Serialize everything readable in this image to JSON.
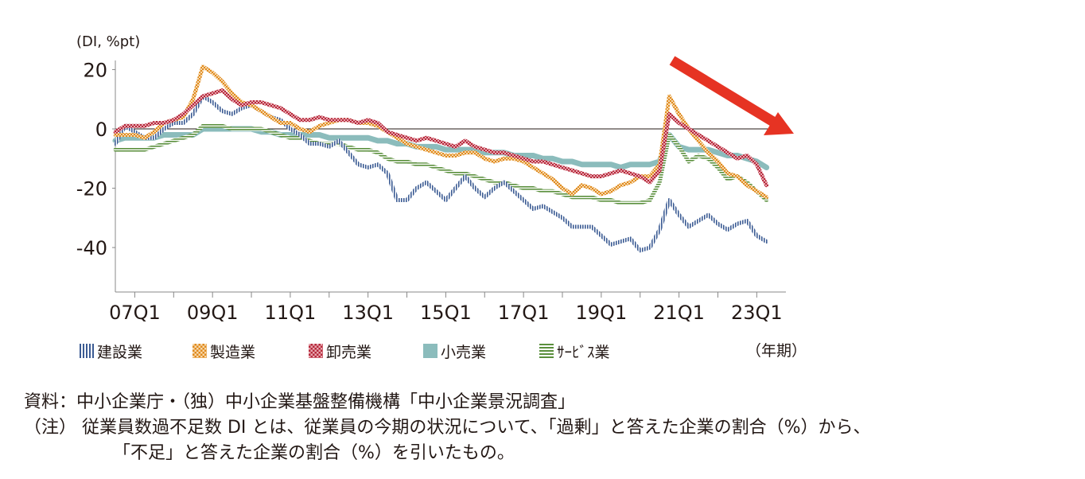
{
  "chart_data": {
    "type": "line",
    "unit_label": "(DI, %pt)",
    "x_axis_title": "（年期）",
    "x_tick_labels": [
      "07Q1",
      "09Q1",
      "11Q1",
      "13Q1",
      "15Q1",
      "17Q1",
      "19Q1",
      "21Q1",
      "23Q1"
    ],
    "y_tick_labels": [
      "20",
      "0",
      "-20",
      "-40"
    ],
    "y_ticks": [
      20,
      0,
      -20,
      -40
    ],
    "ylim": [
      -55,
      22
    ],
    "x": [
      "06Q3",
      "06Q4",
      "07Q1",
      "07Q2",
      "07Q3",
      "07Q4",
      "08Q1",
      "08Q2",
      "08Q3",
      "08Q4",
      "09Q1",
      "09Q2",
      "09Q3",
      "09Q4",
      "10Q1",
      "10Q2",
      "10Q3",
      "10Q4",
      "11Q1",
      "11Q2",
      "11Q3",
      "11Q4",
      "12Q1",
      "12Q2",
      "12Q3",
      "12Q4",
      "13Q1",
      "13Q2",
      "13Q3",
      "13Q4",
      "14Q1",
      "14Q2",
      "14Q3",
      "14Q4",
      "15Q1",
      "15Q2",
      "15Q3",
      "15Q4",
      "16Q1",
      "16Q2",
      "16Q3",
      "16Q4",
      "17Q1",
      "17Q2",
      "17Q3",
      "17Q4",
      "18Q1",
      "18Q2",
      "18Q3",
      "18Q4",
      "19Q1",
      "19Q2",
      "19Q3",
      "19Q4",
      "20Q1",
      "20Q2",
      "20Q3",
      "20Q4",
      "21Q1",
      "21Q2",
      "21Q3",
      "21Q4",
      "22Q1",
      "22Q2",
      "22Q3",
      "22Q4",
      "23Q1",
      "23Q2"
    ],
    "series": [
      {
        "name": "建設業",
        "color": "#3b5b93",
        "values": [
          -5,
          1,
          -1,
          -3,
          -3,
          0,
          2,
          2,
          5,
          11,
          9,
          6,
          5,
          7,
          8,
          6,
          4,
          3,
          0,
          -2,
          -5,
          -5,
          -6,
          -4,
          -8,
          -12,
          -13,
          -12,
          -15,
          -24,
          -24,
          -20,
          -18,
          -21,
          -24,
          -20,
          -16,
          -20,
          -23,
          -20,
          -18,
          -21,
          -24,
          -27,
          -26,
          -28,
          -30,
          -33,
          -33,
          -33,
          -36,
          -39,
          -38,
          -37,
          -41,
          -40,
          -34,
          -24,
          -29,
          -33,
          -31,
          -29,
          -32,
          -34,
          -32,
          -31,
          -36,
          -38
        ]
      },
      {
        "name": "製造業",
        "color": "#e08a1e",
        "values": [
          -2,
          -2,
          -2,
          -3,
          -1,
          2,
          3,
          4,
          10,
          21,
          19,
          16,
          12,
          9,
          8,
          6,
          4,
          2,
          2,
          0,
          -1,
          1,
          2,
          3,
          3,
          2,
          2,
          1,
          -1,
          -3,
          -5,
          -6,
          -7,
          -8,
          -9,
          -9,
          -8,
          -8,
          -10,
          -11,
          -10,
          -10,
          -11,
          -13,
          -15,
          -17,
          -20,
          -22,
          -19,
          -20,
          -22,
          -21,
          -19,
          -18,
          -16,
          -16,
          -12,
          11,
          5,
          0,
          -4,
          -8,
          -11,
          -15,
          -16,
          -19,
          -21,
          -23
        ]
      },
      {
        "name": "卸売業",
        "color": "#b5283a",
        "values": [
          -1,
          1,
          1,
          1,
          2,
          2,
          3,
          5,
          8,
          11,
          12,
          13,
          10,
          8,
          9,
          9,
          8,
          7,
          5,
          3,
          3,
          4,
          3,
          3,
          3,
          2,
          3,
          2,
          -1,
          -2,
          -3,
          -4,
          -3,
          -4,
          -5,
          -6,
          -4,
          -6,
          -7,
          -8,
          -8,
          -9,
          -10,
          -11,
          -11,
          -12,
          -13,
          -14,
          -15,
          -16,
          -16,
          -15,
          -14,
          -15,
          -16,
          -18,
          -14,
          5,
          2,
          0,
          -2,
          -4,
          -6,
          -8,
          -10,
          -9,
          -12,
          -19
        ]
      },
      {
        "name": "小売業",
        "color": "#8bbcbc",
        "values": [
          -4,
          -3,
          -3,
          -3,
          -3,
          -2,
          -2,
          -2,
          -2,
          0,
          0,
          0,
          0,
          0,
          0,
          -1,
          -1,
          -2,
          -2,
          -2,
          -2,
          -2,
          -3,
          -3,
          -3,
          -3,
          -3,
          -4,
          -4,
          -5,
          -5,
          -6,
          -6,
          -6,
          -7,
          -7,
          -7,
          -7,
          -8,
          -8,
          -8,
          -9,
          -9,
          -9,
          -10,
          -10,
          -11,
          -11,
          -12,
          -12,
          -12,
          -12,
          -13,
          -12,
          -12,
          -12,
          -11,
          -2,
          -6,
          -7,
          -7,
          -7,
          -8,
          -9,
          -9,
          -10,
          -11,
          -13
        ]
      },
      {
        "name": "ｻｰﾋﾞｽ業",
        "color": "#5a8f3c",
        "values": [
          -7,
          -7,
          -7,
          -7,
          -6,
          -5,
          -4,
          -3,
          -2,
          1,
          1,
          1,
          0,
          0,
          0,
          0,
          -1,
          -2,
          -3,
          -3,
          -4,
          -5,
          -5,
          -5,
          -6,
          -7,
          -7,
          -8,
          -10,
          -11,
          -11,
          -12,
          -12,
          -13,
          -14,
          -15,
          -15,
          -16,
          -17,
          -18,
          -18,
          -19,
          -20,
          -20,
          -21,
          -21,
          -22,
          -23,
          -23,
          -23,
          -24,
          -24,
          -25,
          -25,
          -25,
          -24,
          -18,
          -2,
          -6,
          -11,
          -9,
          -10,
          -13,
          -17,
          -16,
          -18,
          -21,
          -24
        ]
      }
    ]
  },
  "notes": {
    "source": "資料：中小企業庁・（独）中小企業基盤整備機構「中小企業景況調査」",
    "note_line1": "（注）  従業員数過不足数 DI とは、従業員の今期の状況について、「過剰」と答えた企業の割合（%）から、",
    "note_line2": "「不足」と答えた企業の割合（%）を引いたもの。"
  },
  "arrow_color": "#e63323"
}
